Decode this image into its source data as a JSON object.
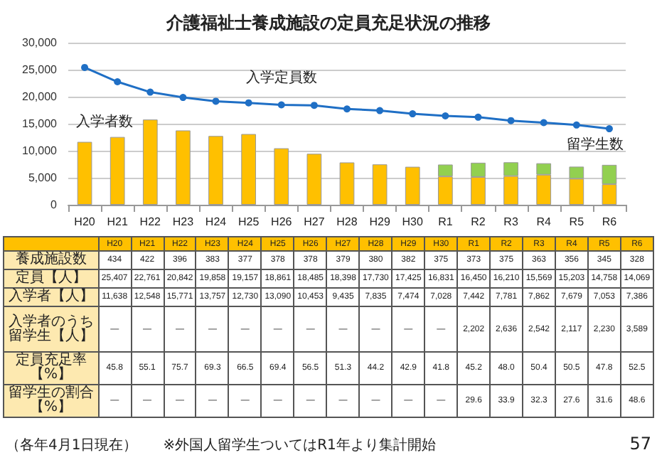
{
  "chart_data": [
    {
      "type": "bar",
      "title": "介護福祉士養成施設の定員充足状況の推移",
      "stacked": true,
      "grid": "y",
      "marker": "circle",
      "categories": [
        "H20",
        "H21",
        "H22",
        "H23",
        "H24",
        "H25",
        "H26",
        "H27",
        "H28",
        "H29",
        "H30",
        "R1",
        "R2",
        "R3",
        "R4",
        "R5",
        "R6"
      ],
      "ylim": [
        0,
        30000
      ],
      "yticks": [
        {
          "value": 0,
          "label": "0"
        },
        {
          "value": 5000,
          "label": "5,000"
        },
        {
          "value": 10000,
          "label": "10,000"
        },
        {
          "value": 15000,
          "label": "15,000"
        },
        {
          "value": 20000,
          "label": "20,000"
        },
        {
          "value": 25000,
          "label": "25,000"
        },
        {
          "value": 30000,
          "label": "30,000"
        }
      ],
      "series": [
        {
          "name": "入学定員数",
          "type": "line",
          "color": "#1f6fc5",
          "values": [
            25407,
            22761,
            20842,
            19858,
            19157,
            18861,
            18485,
            18398,
            17730,
            17425,
            16831,
            16450,
            16210,
            15569,
            15203,
            14758,
            14069
          ]
        },
        {
          "name": "入学者数",
          "type": "bar",
          "color": "#ffc000",
          "values": [
            11638,
            12548,
            15771,
            13757,
            12730,
            13090,
            10453,
            9435,
            7835,
            7474,
            7028,
            5240,
            5145,
            5320,
            5562,
            4823,
            3797
          ]
        },
        {
          "name": "留学生数",
          "type": "bar",
          "color": "#92d050",
          "values": [
            null,
            null,
            null,
            null,
            null,
            null,
            null,
            null,
            null,
            null,
            null,
            2202,
            2636,
            2542,
            2117,
            2230,
            3589
          ]
        }
      ]
    },
    {
      "type": "heatmap",
      "categories": [
        "H20",
        "H21",
        "H22",
        "H23",
        "H24",
        "H25",
        "H26",
        "H27",
        "H28",
        "H29",
        "H30",
        "R1",
        "R2",
        "R3",
        "R4",
        "R5",
        "R6"
      ],
      "y_categories": [
        "養成施設数",
        "定員【人】",
        "入学者【人】",
        "入学者のうち留学生【人】",
        "定員充足率【%】",
        "留学生の割合【%】"
      ],
      "cells": [
        [
          434,
          422,
          396,
          383,
          377,
          378,
          378,
          379,
          380,
          382,
          375,
          373,
          375,
          363,
          356,
          345,
          328
        ],
        [
          25407,
          22761,
          20842,
          19858,
          19157,
          18861,
          18485,
          18398,
          17730,
          17425,
          16831,
          16450,
          16210,
          15569,
          15203,
          14758,
          14069
        ],
        [
          11638,
          12548,
          15771,
          13757,
          12730,
          13090,
          10453,
          9435,
          7835,
          7474,
          7028,
          7442,
          7781,
          7862,
          7679,
          7053,
          7386
        ],
        [
          null,
          null,
          null,
          null,
          null,
          null,
          null,
          null,
          null,
          null,
          null,
          2202,
          2636,
          2542,
          2117,
          2230,
          3589
        ],
        [
          45.8,
          55.1,
          75.7,
          69.3,
          66.5,
          69.4,
          56.5,
          51.3,
          44.2,
          42.9,
          41.8,
          45.2,
          48.0,
          50.4,
          50.5,
          47.8,
          52.5
        ],
        [
          null,
          null,
          null,
          null,
          null,
          null,
          null,
          null,
          null,
          null,
          null,
          29.6,
          33.9,
          32.3,
          27.6,
          31.6,
          48.6
        ]
      ],
      "cell_labels": [
        [
          "434",
          "422",
          "396",
          "383",
          "377",
          "378",
          "378",
          "379",
          "380",
          "382",
          "375",
          "373",
          "375",
          "363",
          "356",
          "345",
          "328"
        ],
        [
          "25,407",
          "22,761",
          "20,842",
          "19,858",
          "19,157",
          "18,861",
          "18,485",
          "18,398",
          "17,730",
          "17,425",
          "16,831",
          "16,450",
          "16,210",
          "15,569",
          "15,203",
          "14,758",
          "14,069"
        ],
        [
          "11,638",
          "12,548",
          "15,771",
          "13,757",
          "12,730",
          "13,090",
          "10,453",
          "9,435",
          "7,835",
          "7,474",
          "7,028",
          "7,442",
          "7,781",
          "7,862",
          "7,679",
          "7,053",
          "7,386"
        ],
        [
          "—",
          "—",
          "—",
          "—",
          "—",
          "—",
          "—",
          "—",
          "—",
          "—",
          "—",
          "2,202",
          "2,636",
          "2,542",
          "2,117",
          "2,230",
          "3,589"
        ],
        [
          "45.8",
          "55.1",
          "75.7",
          "69.3",
          "66.5",
          "69.4",
          "56.5",
          "51.3",
          "44.2",
          "42.9",
          "41.8",
          "45.2",
          "48.0",
          "50.4",
          "50.5",
          "47.8",
          "52.5"
        ],
        [
          "—",
          "—",
          "—",
          "—",
          "—",
          "—",
          "—",
          "—",
          "—",
          "—",
          "—",
          "29.6",
          "33.9",
          "32.3",
          "27.6",
          "31.6",
          "48.6"
        ]
      ],
      "annotations": [
        "（各年4月1日現在）",
        "※外国人留学生ついてはR1年より集計開始",
        "57"
      ]
    }
  ]
}
